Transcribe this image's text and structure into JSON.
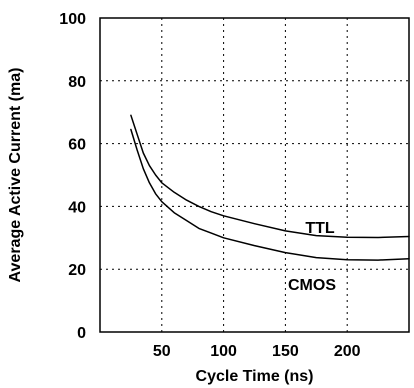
{
  "chart_data": {
    "type": "line",
    "title": "",
    "xlabel": "Cycle Time (ns)",
    "ylabel": "Average Active Current (ma)",
    "xlim": [
      0,
      250
    ],
    "ylim": [
      0,
      100
    ],
    "xticks": [
      50,
      100,
      150,
      200
    ],
    "yticks": [
      0,
      20,
      40,
      60,
      80,
      100
    ],
    "grid": true,
    "grid_style": "dotted",
    "legend": "none",
    "series": [
      {
        "name": "TTL",
        "x": [
          25,
          30,
          35,
          40,
          45,
          50,
          60,
          70,
          80,
          90,
          100,
          125,
          150,
          175,
          200,
          225,
          250
        ],
        "y": [
          69,
          63,
          57,
          53,
          50,
          47.5,
          44.5,
          42,
          40,
          38.3,
          37,
          34.5,
          32.2,
          30.7,
          30.2,
          30.1,
          30.4
        ]
      },
      {
        "name": "CMOS",
        "x": [
          25,
          30,
          35,
          40,
          45,
          50,
          60,
          70,
          80,
          90,
          100,
          125,
          150,
          175,
          200,
          225,
          250
        ],
        "y": [
          64.5,
          58,
          52,
          47.5,
          44,
          41.5,
          38,
          35.5,
          33,
          31.5,
          30,
          27.5,
          25.3,
          23.7,
          23,
          22.9,
          23.3
        ]
      }
    ]
  }
}
